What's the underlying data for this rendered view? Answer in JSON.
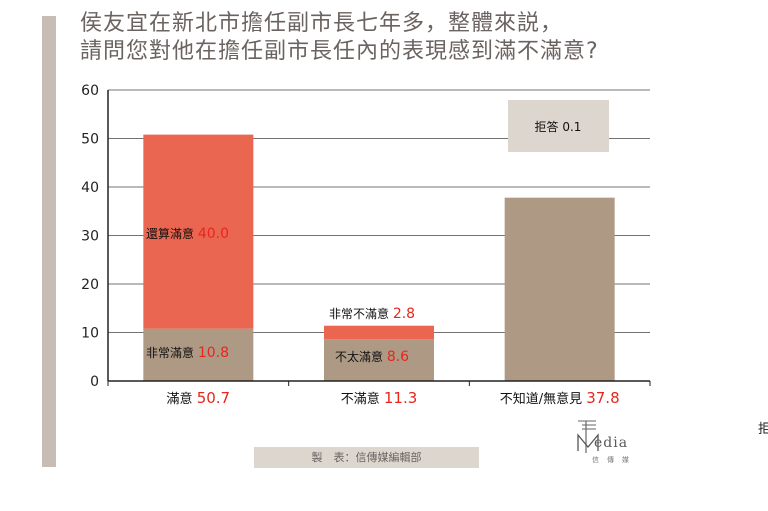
{
  "header": {
    "title_line1": "侯友宜在新北市擔任副市長七年多，整體來説，",
    "title_line2": "請問您對他在擔任副市長任內的表現感到滿不滿意?"
  },
  "chart_data": {
    "type": "bar",
    "stacked": true,
    "ylim": [
      0,
      60
    ],
    "yticks": [
      0,
      10,
      20,
      30,
      40,
      50,
      60
    ],
    "grid": true,
    "categories": [
      {
        "label": "滿意",
        "total": "50.7",
        "segments": [
          {
            "label": "非常滿意",
            "value": 10.8,
            "value_text": "10.8",
            "color": "#ae9985"
          },
          {
            "label": "還算滿意",
            "value": 40.0,
            "value_text": "40.0",
            "color": "#ea6650"
          }
        ]
      },
      {
        "label": "不滿意",
        "total": "11.3",
        "segments": [
          {
            "label": "不太滿意",
            "value": 8.6,
            "value_text": "8.6",
            "color": "#ae9985"
          },
          {
            "label": "非常不滿意",
            "value": 2.8,
            "value_text": "2.8",
            "color": "#ea6650"
          }
        ]
      },
      {
        "label": "不知道/無意見",
        "total": "37.8",
        "segments": [
          {
            "label": "",
            "value": 37.8,
            "value_text": "",
            "color": "#ae9985"
          }
        ]
      }
    ],
    "annotation": {
      "label": "拒答",
      "value": "0.1"
    },
    "colors": {
      "value_text": "#e8261c",
      "axis": "#222222",
      "grid": "#444444",
      "annotation_box": "#ddd6cf"
    }
  },
  "footer": {
    "source": "製　表：信傳媒編輯部",
    "logo_word": "edia",
    "logo_sub": "信傳媒",
    "edge_text": "拒"
  }
}
